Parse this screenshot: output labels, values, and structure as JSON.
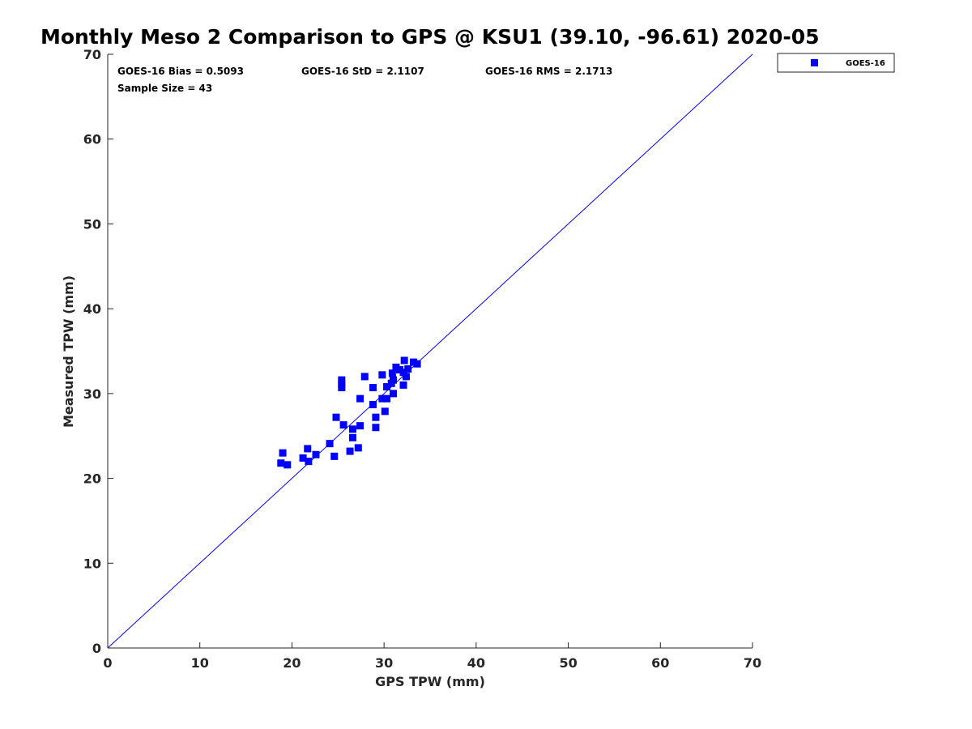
{
  "chart_data": {
    "type": "scatter",
    "title": "Monthly Meso 2 Comparison to GPS @ KSU1 (39.10, -96.61) 2020-05",
    "xlabel": "GPS TPW (mm)",
    "ylabel": "Measured TPW (mm)",
    "xlim": [
      0,
      70
    ],
    "ylim": [
      0,
      70
    ],
    "xticks": [
      0,
      10,
      20,
      30,
      40,
      50,
      60,
      70
    ],
    "yticks": [
      0,
      10,
      20,
      30,
      40,
      50,
      60,
      70
    ],
    "grid": false,
    "legend_position": "outside-top-right",
    "reference_line": {
      "from": [
        0,
        0
      ],
      "to": [
        70,
        70
      ],
      "color": "#0000ff"
    },
    "stats": {
      "bias": "GOES-16 Bias = 0.5093",
      "std": "GOES-16 StD = 2.1107",
      "rms": "GOES-16 RMS = 2.1713",
      "sample": "Sample Size = 43"
    },
    "series": [
      {
        "name": "GOES-16",
        "color": "#0000ff",
        "marker": "square",
        "points": [
          [
            18.8,
            21.8
          ],
          [
            19.0,
            23.0
          ],
          [
            19.5,
            21.6
          ],
          [
            21.2,
            22.4
          ],
          [
            21.7,
            23.5
          ],
          [
            21.8,
            22.0
          ],
          [
            22.6,
            22.8
          ],
          [
            24.1,
            24.1
          ],
          [
            24.6,
            22.6
          ],
          [
            24.8,
            27.2
          ],
          [
            25.4,
            31.6
          ],
          [
            25.4,
            31.1
          ],
          [
            25.4,
            30.7
          ],
          [
            25.6,
            26.3
          ],
          [
            26.3,
            23.2
          ],
          [
            26.6,
            25.8
          ],
          [
            26.6,
            24.8
          ],
          [
            27.2,
            23.6
          ],
          [
            27.4,
            26.2
          ],
          [
            27.4,
            29.4
          ],
          [
            27.9,
            32.0
          ],
          [
            28.8,
            28.7
          ],
          [
            28.8,
            30.7
          ],
          [
            29.1,
            27.2
          ],
          [
            29.1,
            26.0
          ],
          [
            29.8,
            32.2
          ],
          [
            29.8,
            29.4
          ],
          [
            30.1,
            27.9
          ],
          [
            30.3,
            30.8
          ],
          [
            30.3,
            29.4
          ],
          [
            30.8,
            31.2
          ],
          [
            30.9,
            32.4
          ],
          [
            31.0,
            31.6
          ],
          [
            31.0,
            30.0
          ],
          [
            31.3,
            33.1
          ],
          [
            31.7,
            32.8
          ],
          [
            32.1,
            32.5
          ],
          [
            32.1,
            31.0
          ],
          [
            32.2,
            33.9
          ],
          [
            32.4,
            32.0
          ],
          [
            32.6,
            32.9
          ],
          [
            33.2,
            33.7
          ],
          [
            33.6,
            33.5
          ]
        ]
      }
    ]
  }
}
